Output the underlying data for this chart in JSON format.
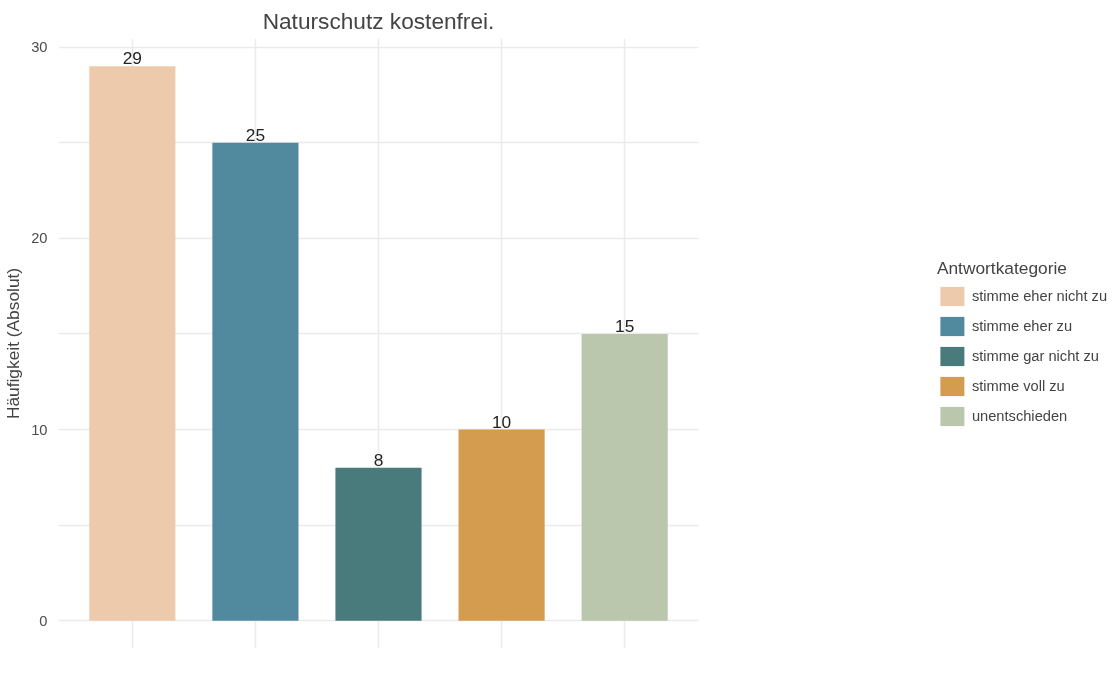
{
  "chart_data": {
    "type": "bar",
    "title": "Naturschutz kostenfrei.",
    "ylabel": "Häufigkeit (Absolut)",
    "legend_title": "Antwortkategorie",
    "categories": [
      null,
      null,
      null,
      null,
      null
    ],
    "series": [
      {
        "name": "stimme eher nicht zu",
        "color": "#eecaac",
        "values": [
          29,
          null,
          null,
          null,
          null
        ]
      },
      {
        "name": "stimme eher zu",
        "color": "#518a9f",
        "values": [
          null,
          25,
          null,
          null,
          null
        ]
      },
      {
        "name": "stimme gar nicht zu",
        "color": "#4a7b7c",
        "values": [
          null,
          null,
          8,
          null,
          null
        ]
      },
      {
        "name": "stimme voll zu",
        "color": "#d49c4e",
        "values": [
          null,
          null,
          null,
          10,
          null
        ]
      },
      {
        "name": "unentschieden",
        "color": "#bac7ac",
        "values": [
          null,
          null,
          null,
          null,
          15
        ]
      }
    ],
    "ylim": [
      -1.45,
      30.45
    ],
    "yticks": [
      0,
      {
        "value": 5,
        "label": null
      },
      10,
      {
        "value": 15,
        "label": null
      },
      20,
      {
        "value": 25,
        "label": null
      },
      30
    ],
    "grid": true,
    "legend": "right",
    "data_labels": true
  }
}
